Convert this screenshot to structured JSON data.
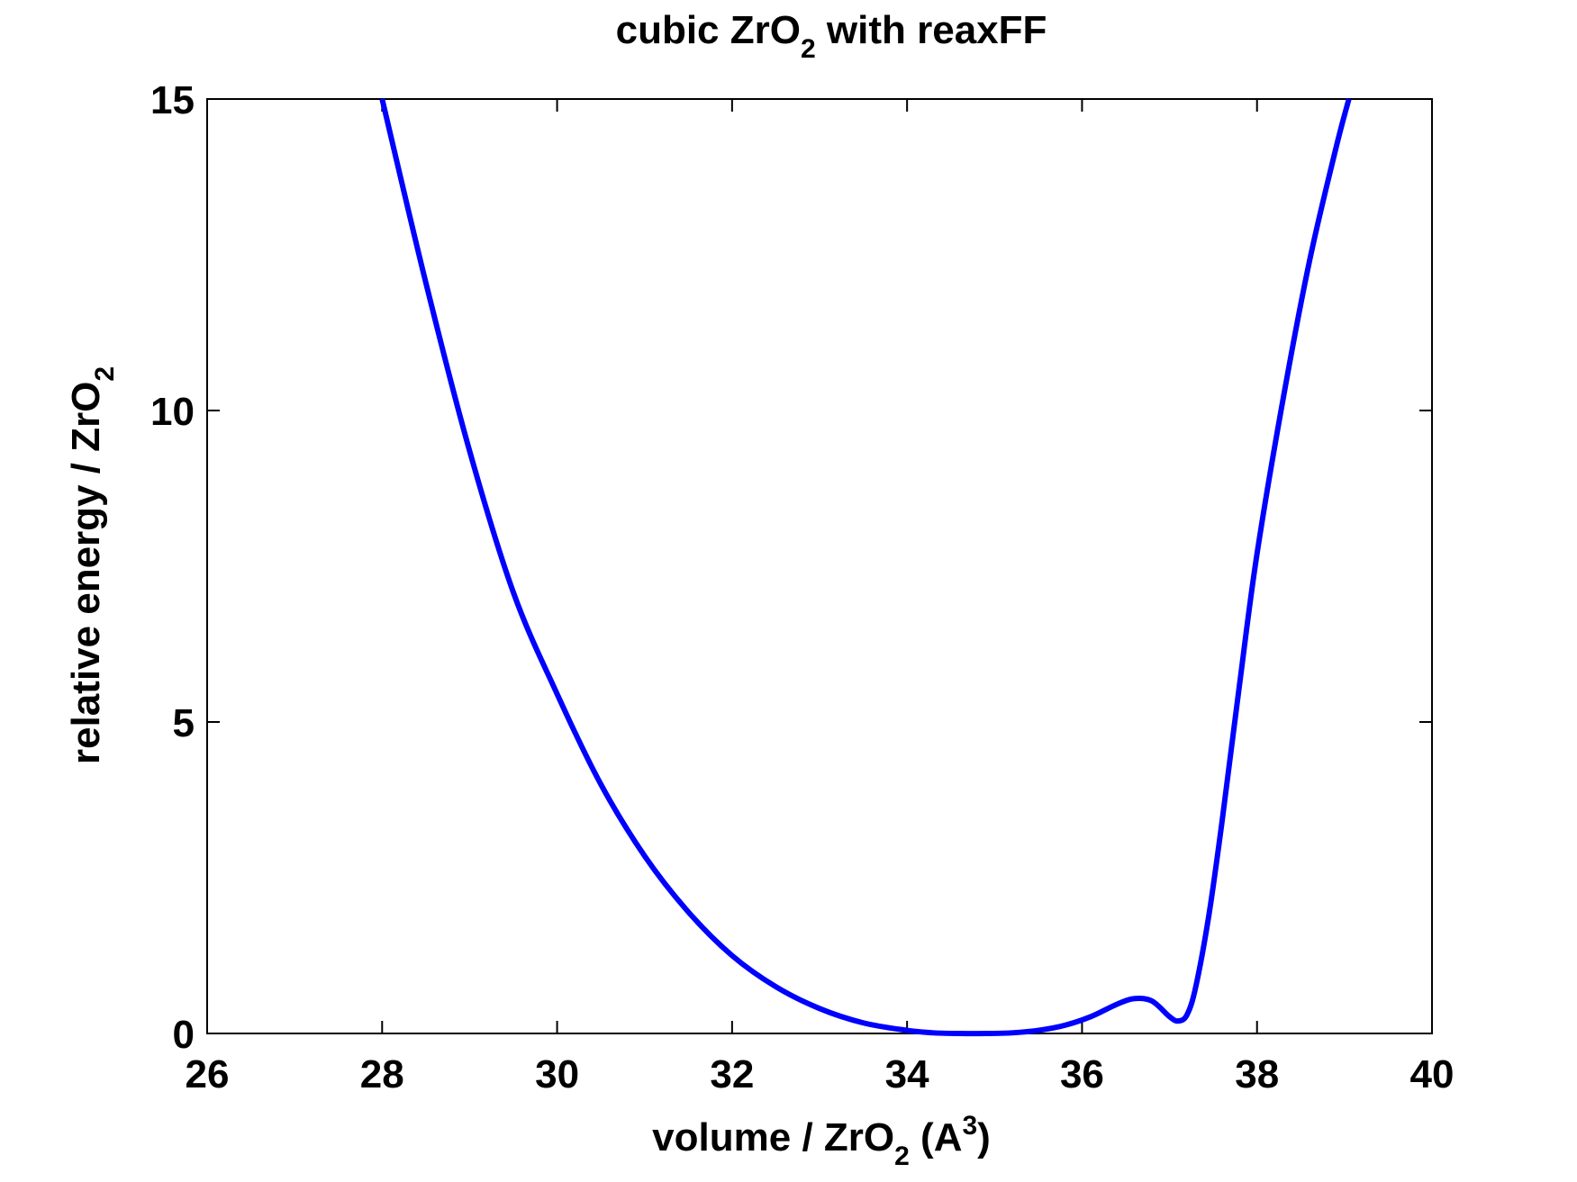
{
  "chart_data": {
    "type": "line",
    "title": {
      "main": "cubic ZrO",
      "sub": "2",
      "rest": " with reaxFF"
    },
    "xlabel": {
      "main": "volume / ZrO",
      "sub": "2",
      "mid": " (A",
      "sup": "3",
      "rest": ")"
    },
    "ylabel": {
      "main": "relative energy / ZrO",
      "sub": "2"
    },
    "xlim": [
      26,
      40
    ],
    "ylim": [
      0,
      15
    ],
    "xticks": [
      26,
      28,
      30,
      32,
      34,
      36,
      38,
      40
    ],
    "yticks": [
      0,
      5,
      10,
      15
    ],
    "xtick_labels": [
      "26",
      "28",
      "30",
      "32",
      "34",
      "36",
      "38",
      "40"
    ],
    "ytick_labels": [
      "0",
      "5",
      "10",
      "15"
    ],
    "grid": false,
    "series": [
      {
        "color": "#0000ff",
        "x": [
          28.0,
          28.5,
          29.0,
          29.5,
          30.0,
          30.5,
          31.0,
          31.5,
          32.0,
          32.5,
          33.0,
          33.5,
          34.0,
          34.3,
          34.6,
          34.9,
          35.2,
          35.5,
          35.8,
          36.1,
          36.4,
          36.6,
          36.8,
          37.0,
          37.1,
          37.2,
          37.3,
          37.45,
          37.6,
          37.8,
          38.0,
          38.3,
          38.6,
          38.9,
          39.05
        ],
        "y": [
          15.0,
          12.05,
          9.35,
          7.08,
          5.45,
          4.0,
          2.85,
          1.95,
          1.25,
          0.75,
          0.4,
          0.17,
          0.05,
          0.01,
          0.0,
          0.0,
          0.01,
          0.05,
          0.13,
          0.27,
          0.47,
          0.56,
          0.52,
          0.27,
          0.2,
          0.3,
          0.75,
          1.9,
          3.4,
          5.6,
          7.7,
          10.2,
          12.4,
          14.2,
          15.0
        ]
      }
    ]
  }
}
